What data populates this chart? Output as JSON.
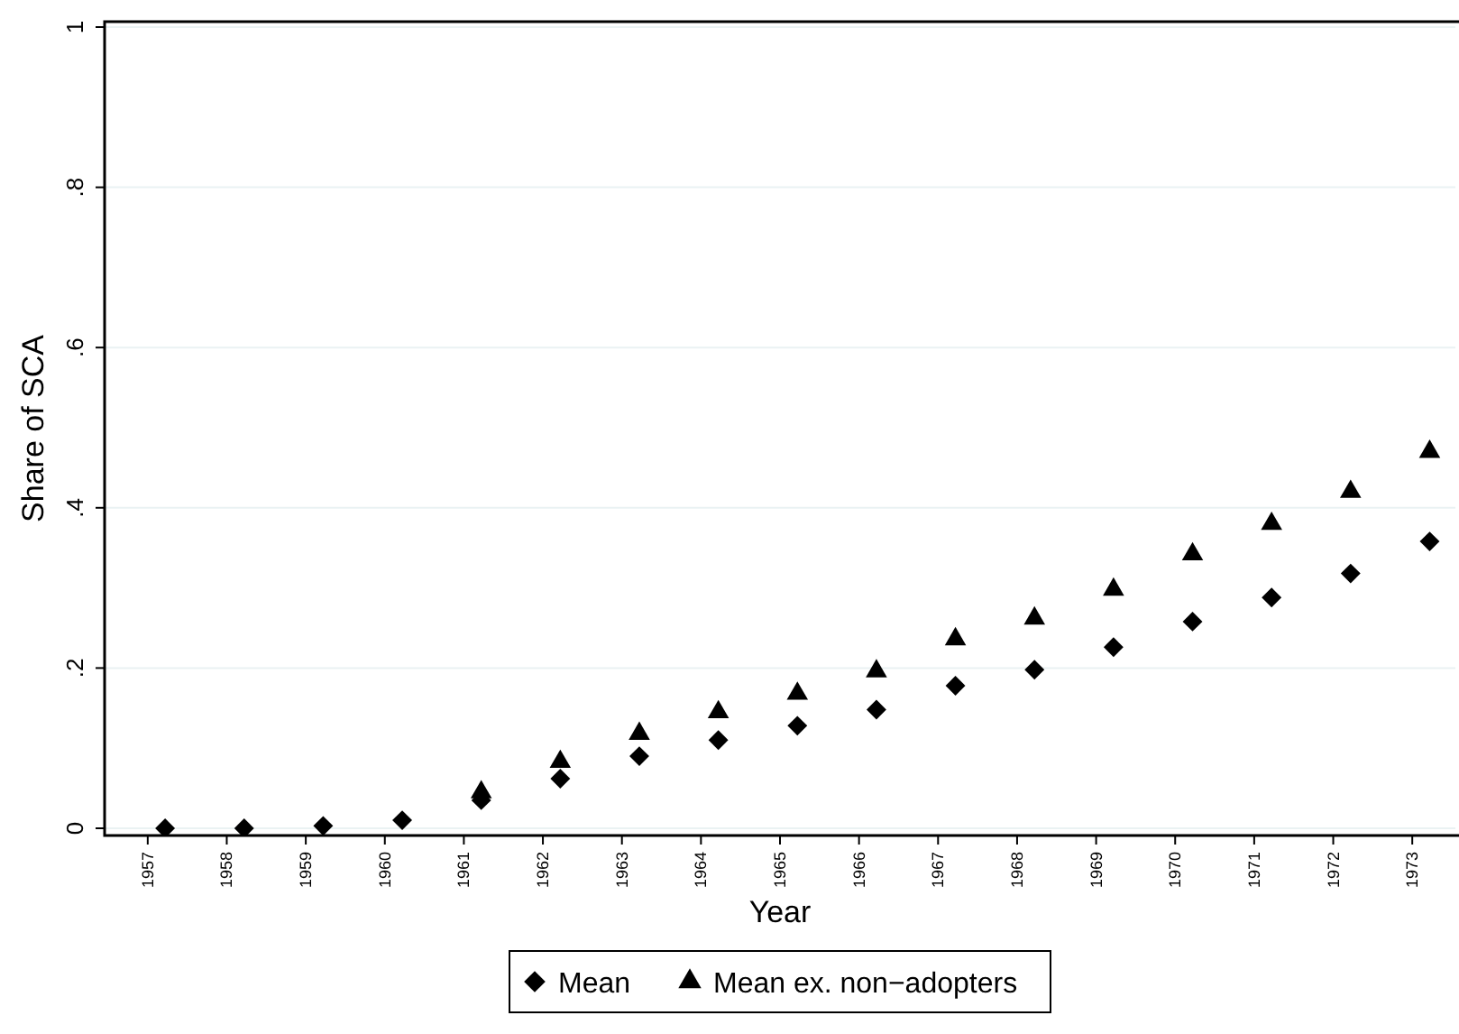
{
  "chart_data": {
    "type": "scatter",
    "xlabel": "Year",
    "ylabel": "Share of SCA",
    "categories": [
      "1957",
      "1958",
      "1959",
      "1960",
      "1961",
      "1962",
      "1963",
      "1964",
      "1965",
      "1966",
      "1967",
      "1968",
      "1969",
      "1970",
      "1971",
      "1972",
      "1973"
    ],
    "series": [
      {
        "name": "Mean",
        "color": "#000000",
        "marker": "diamond",
        "values": [
          0,
          0,
          0.003,
          0.01,
          0.035,
          0.062,
          0.09,
          0.11,
          0.128,
          0.148,
          0.178,
          0.198,
          0.226,
          0.258,
          0.288,
          0.318,
          0.358
        ]
      },
      {
        "name": "Mean ex. non−adopters",
        "color": "#000000",
        "marker": "triangle",
        "values": [
          null,
          null,
          null,
          null,
          0.045,
          0.083,
          0.118,
          0.145,
          0.168,
          0.196,
          0.236,
          0.262,
          0.298,
          0.342,
          0.38,
          0.42,
          0.47
        ]
      }
    ],
    "ylim": [
      0,
      1
    ],
    "yticks": [
      0,
      {
        "value": 0.2,
        "label": ".2"
      },
      {
        "value": 0.4,
        "label": ".4"
      },
      {
        "value": 0.6,
        "label": ".6"
      },
      {
        "value": 0.8,
        "label": ".8"
      },
      1
    ],
    "grid": "y",
    "legend": "bottom"
  }
}
